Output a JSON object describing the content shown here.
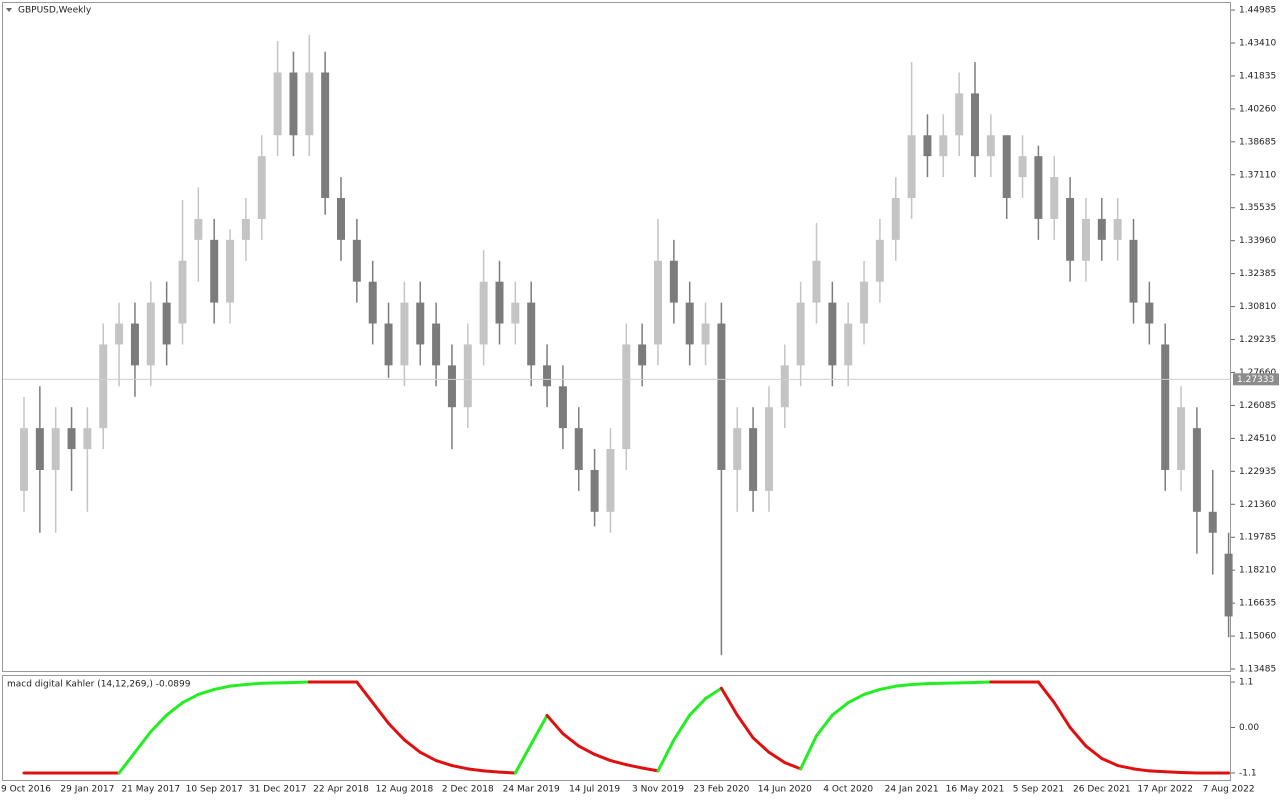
{
  "chart_data": [
    {
      "type": "candlestick",
      "title": "GBPUSD,Weekly",
      "categories": [
        "9 Oct 2016",
        null,
        null,
        null,
        "29 Jan 2017",
        null,
        null,
        null,
        "21 May 2017",
        null,
        null,
        null,
        "10 Sep 2017",
        null,
        null,
        null,
        "31 Dec 2017",
        null,
        null,
        null,
        "22 Apr 2018",
        null,
        null,
        null,
        "12 Aug 2018",
        null,
        null,
        null,
        "2 Dec 2018",
        null,
        null,
        null,
        "24 Mar 2019",
        null,
        null,
        null,
        "14 Jul 2019",
        null,
        null,
        null,
        "3 Nov 2019",
        null,
        null,
        null,
        "23 Feb 2020",
        null,
        null,
        null,
        "14 Jun 2020",
        null,
        null,
        null,
        "4 Oct 2020",
        null,
        null,
        null,
        "24 Jan 2021",
        null,
        null,
        null,
        "16 May 2021",
        null,
        null,
        null,
        "5 Sep 2021",
        null,
        null,
        null,
        "26 Dec 2021",
        null,
        null,
        null,
        "17 Apr 2022",
        null,
        null,
        null,
        "7 Aug 2022"
      ],
      "candles": [
        [
          1.22,
          1.265,
          1.21,
          1.25
        ],
        [
          1.25,
          1.27,
          1.2,
          1.23
        ],
        [
          1.23,
          1.26,
          1.2,
          1.25
        ],
        [
          1.25,
          1.26,
          1.22,
          1.24
        ],
        [
          1.24,
          1.26,
          1.21,
          1.25
        ],
        [
          1.25,
          1.3,
          1.24,
          1.29
        ],
        [
          1.29,
          1.31,
          1.27,
          1.3
        ],
        [
          1.3,
          1.31,
          1.265,
          1.28
        ],
        [
          1.28,
          1.32,
          1.27,
          1.31
        ],
        [
          1.31,
          1.32,
          1.28,
          1.29
        ],
        [
          1.3,
          1.359,
          1.29,
          1.33
        ],
        [
          1.34,
          1.365,
          1.32,
          1.35
        ],
        [
          1.34,
          1.35,
          1.3,
          1.31
        ],
        [
          1.31,
          1.345,
          1.3,
          1.34
        ],
        [
          1.34,
          1.36,
          1.33,
          1.35
        ],
        [
          1.35,
          1.39,
          1.34,
          1.38
        ],
        [
          1.39,
          1.435,
          1.38,
          1.42
        ],
        [
          1.42,
          1.43,
          1.38,
          1.39
        ],
        [
          1.39,
          1.438,
          1.38,
          1.42
        ],
        [
          1.42,
          1.43,
          1.352,
          1.36
        ],
        [
          1.36,
          1.37,
          1.33,
          1.34
        ],
        [
          1.34,
          1.35,
          1.31,
          1.32
        ],
        [
          1.32,
          1.33,
          1.29,
          1.3
        ],
        [
          1.3,
          1.31,
          1.274,
          1.28
        ],
        [
          1.28,
          1.32,
          1.27,
          1.31
        ],
        [
          1.31,
          1.32,
          1.28,
          1.29
        ],
        [
          1.3,
          1.31,
          1.27,
          1.28
        ],
        [
          1.28,
          1.29,
          1.24,
          1.26
        ],
        [
          1.26,
          1.3,
          1.25,
          1.29
        ],
        [
          1.29,
          1.335,
          1.28,
          1.32
        ],
        [
          1.32,
          1.33,
          1.29,
          1.3
        ],
        [
          1.3,
          1.32,
          1.29,
          1.31
        ],
        [
          1.31,
          1.32,
          1.27,
          1.28
        ],
        [
          1.28,
          1.29,
          1.26,
          1.27
        ],
        [
          1.27,
          1.28,
          1.24,
          1.25
        ],
        [
          1.25,
          1.26,
          1.22,
          1.23
        ],
        [
          1.23,
          1.24,
          1.203,
          1.21
        ],
        [
          1.21,
          1.25,
          1.2,
          1.24
        ],
        [
          1.24,
          1.3,
          1.23,
          1.29
        ],
        [
          1.29,
          1.3,
          1.27,
          1.28
        ],
        [
          1.29,
          1.35,
          1.28,
          1.33
        ],
        [
          1.33,
          1.34,
          1.3,
          1.31
        ],
        [
          1.31,
          1.32,
          1.28,
          1.29
        ],
        [
          1.29,
          1.31,
          1.28,
          1.3
        ],
        [
          1.3,
          1.31,
          1.1415,
          1.23
        ],
        [
          1.23,
          1.26,
          1.21,
          1.25
        ],
        [
          1.25,
          1.26,
          1.21,
          1.22
        ],
        [
          1.22,
          1.27,
          1.21,
          1.26
        ],
        [
          1.26,
          1.29,
          1.25,
          1.28
        ],
        [
          1.28,
          1.32,
          1.27,
          1.31
        ],
        [
          1.31,
          1.348,
          1.3,
          1.33
        ],
        [
          1.31,
          1.32,
          1.27,
          1.28
        ],
        [
          1.28,
          1.31,
          1.27,
          1.3
        ],
        [
          1.3,
          1.33,
          1.29,
          1.32
        ],
        [
          1.32,
          1.35,
          1.31,
          1.34
        ],
        [
          1.34,
          1.37,
          1.33,
          1.36
        ],
        [
          1.36,
          1.425,
          1.35,
          1.39
        ],
        [
          1.39,
          1.4,
          1.37,
          1.38
        ],
        [
          1.38,
          1.4,
          1.37,
          1.39
        ],
        [
          1.39,
          1.42,
          1.38,
          1.41
        ],
        [
          1.41,
          1.425,
          1.37,
          1.38
        ],
        [
          1.38,
          1.4,
          1.37,
          1.39
        ],
        [
          1.39,
          1.39,
          1.35,
          1.36
        ],
        [
          1.37,
          1.39,
          1.36,
          1.38
        ],
        [
          1.38,
          1.385,
          1.34,
          1.35
        ],
        [
          1.35,
          1.38,
          1.34,
          1.37
        ],
        [
          1.36,
          1.37,
          1.32,
          1.33
        ],
        [
          1.33,
          1.36,
          1.32,
          1.35
        ],
        [
          1.35,
          1.36,
          1.33,
          1.34
        ],
        [
          1.34,
          1.36,
          1.33,
          1.35
        ],
        [
          1.34,
          1.35,
          1.3,
          1.31
        ],
        [
          1.31,
          1.32,
          1.29,
          1.3
        ],
        [
          1.29,
          1.3,
          1.22,
          1.23
        ],
        [
          1.23,
          1.27,
          1.22,
          1.26
        ],
        [
          1.25,
          1.26,
          1.19,
          1.21
        ],
        [
          1.21,
          1.23,
          1.18,
          1.2
        ],
        [
          1.19,
          1.2,
          1.15,
          1.16
        ]
      ],
      "up_color": "#c4c4c4",
      "down_color": "#7c7c7c",
      "last_price": 1.27333,
      "last_color": "#8c8c8c",
      "ylim": [
        1.1339,
        1.4537
      ],
      "yticks": [
        1.44985,
        {
          "value": 1.4341,
          "label": "1.43410"
        },
        1.41835,
        {
          "value": 1.4026,
          "label": "1.40260"
        },
        1.38685,
        {
          "value": 1.3711,
          "label": "1.37110"
        },
        1.35535,
        {
          "value": 1.3396,
          "label": "1.33960"
        },
        1.32385,
        {
          "value": 1.3081,
          "label": "1.30810"
        },
        1.29235,
        {
          "value": 1.2766,
          "label": "1.27660"
        },
        1.26085,
        {
          "value": 1.2451,
          "label": "1.24510"
        },
        1.22935,
        {
          "value": 1.2136,
          "label": "1.21360"
        },
        1.19785,
        {
          "value": 1.1821,
          "label": "1.18210"
        },
        1.16635,
        {
          "value": 1.1506,
          "label": "1.15060"
        },
        1.13485
      ]
    },
    {
      "type": "line",
      "title": "macd digital Kahler (14,12,269,) -0.0899",
      "values": [
        -1.1,
        -1.1,
        -1.1,
        -1.1,
        -1.1,
        -1.1,
        -1.1,
        -0.6,
        -0.1,
        0.3,
        0.6,
        0.8,
        0.92,
        1.0,
        1.04,
        1.07,
        1.08,
        1.09,
        1.1,
        1.1,
        1.1,
        1.1,
        0.6,
        0.1,
        -0.3,
        -0.6,
        -0.8,
        -0.92,
        -1.0,
        -1.05,
        -1.08,
        -1.1,
        -0.4,
        0.29,
        -0.15,
        -0.45,
        -0.65,
        -0.8,
        -0.9,
        -0.98,
        -1.05,
        -0.3,
        0.3,
        0.7,
        0.95,
        0.3,
        -0.25,
        -0.6,
        -0.85,
        -1.0,
        -0.2,
        0.3,
        0.6,
        0.8,
        0.92,
        1.0,
        1.04,
        1.06,
        1.07,
        1.08,
        1.09,
        1.1,
        1.1,
        1.1,
        1.1,
        0.6,
        0.0,
        -0.45,
        -0.75,
        -0.92,
        -1.0,
        -1.05,
        -1.07,
        -1.09,
        -1.1,
        -1.1,
        -1.1
      ],
      "up_color": "#22ee22",
      "down_color": "#e01010",
      "ylim": [
        -1.27,
        1.27
      ],
      "yticks": [
        1.1,
        {
          "value": 0,
          "label": "0.00"
        },
        -1.1
      ]
    }
  ]
}
